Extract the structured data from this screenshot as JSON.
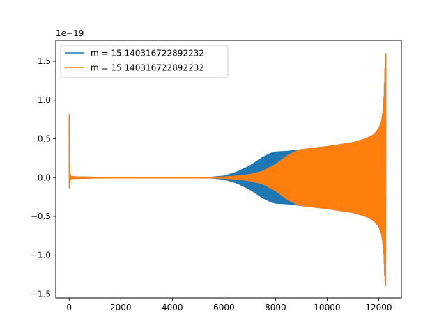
{
  "chart_data": {
    "type": "line",
    "title": "",
    "xlabel": "",
    "ylabel": "",
    "offset_text": "1e−19",
    "xlim": [
      -520,
      12880
    ],
    "ylim": [
      -1.55,
      1.77
    ],
    "xticks": [
      0,
      2000,
      4000,
      6000,
      8000,
      10000,
      12000
    ],
    "xtick_labels": [
      "0",
      "2000",
      "4000",
      "6000",
      "8000",
      "10000",
      "12000"
    ],
    "yticks": [
      -1.5,
      -1.0,
      -0.5,
      0.0,
      0.5,
      1.0,
      1.5
    ],
    "ytick_labels": [
      "−1.5",
      "−1.0",
      "−0.5",
      "0.0",
      "0.5",
      "1.0",
      "1.5"
    ],
    "grid": false,
    "legend_position": "top-left",
    "series": [
      {
        "name": "m = 15.140316722892232",
        "color": "#1f77b4",
        "envelope": {
          "x": [
            0,
            20,
            40,
            80,
            200,
            1000,
            3000,
            5500,
            6000,
            6500,
            7000,
            7500,
            7800,
            8000,
            8500,
            9000,
            10000,
            11000,
            11500,
            11800,
            12000,
            12100,
            12150,
            12200,
            12230,
            12260,
            12280
          ],
          "upper": [
            0.82,
            0.1,
            0.03,
            0.015,
            0.01,
            0.005,
            0.004,
            0.005,
            0.02,
            0.07,
            0.15,
            0.26,
            0.31,
            0.33,
            0.34,
            0.36,
            0.4,
            0.45,
            0.5,
            0.55,
            0.63,
            0.72,
            0.82,
            1.0,
            1.3,
            1.62,
            1.6
          ],
          "lower": [
            -0.18,
            -0.08,
            -0.03,
            -0.015,
            -0.01,
            -0.005,
            -0.004,
            -0.005,
            -0.02,
            -0.07,
            -0.15,
            -0.26,
            -0.31,
            -0.33,
            -0.34,
            -0.36,
            -0.4,
            -0.45,
            -0.5,
            -0.55,
            -0.63,
            -0.72,
            -0.82,
            -1.0,
            -1.25,
            -1.4,
            -1.38
          ]
        }
      },
      {
        "name": "m = 15.140316722892232",
        "color": "#ff7f0e",
        "envelope": {
          "x": [
            0,
            20,
            40,
            80,
            200,
            1000,
            3000,
            5500,
            6000,
            6500,
            7000,
            7500,
            8000,
            8500,
            8800,
            9000,
            10000,
            11000,
            11500,
            11800,
            12000,
            12100,
            12150,
            12200,
            12230,
            12260,
            12280
          ],
          "upper": [
            0.82,
            0.1,
            0.03,
            0.015,
            0.01,
            0.005,
            0.004,
            0.004,
            0.008,
            0.02,
            0.04,
            0.08,
            0.17,
            0.29,
            0.34,
            0.36,
            0.4,
            0.45,
            0.5,
            0.55,
            0.63,
            0.72,
            0.82,
            1.0,
            1.3,
            1.62,
            1.6
          ],
          "lower": [
            -0.18,
            -0.08,
            -0.03,
            -0.015,
            -0.01,
            -0.005,
            -0.004,
            -0.004,
            -0.008,
            -0.02,
            -0.04,
            -0.08,
            -0.17,
            -0.29,
            -0.34,
            -0.36,
            -0.4,
            -0.45,
            -0.5,
            -0.55,
            -0.63,
            -0.72,
            -0.82,
            -1.0,
            -1.25,
            -1.4,
            -1.38
          ]
        }
      }
    ]
  }
}
